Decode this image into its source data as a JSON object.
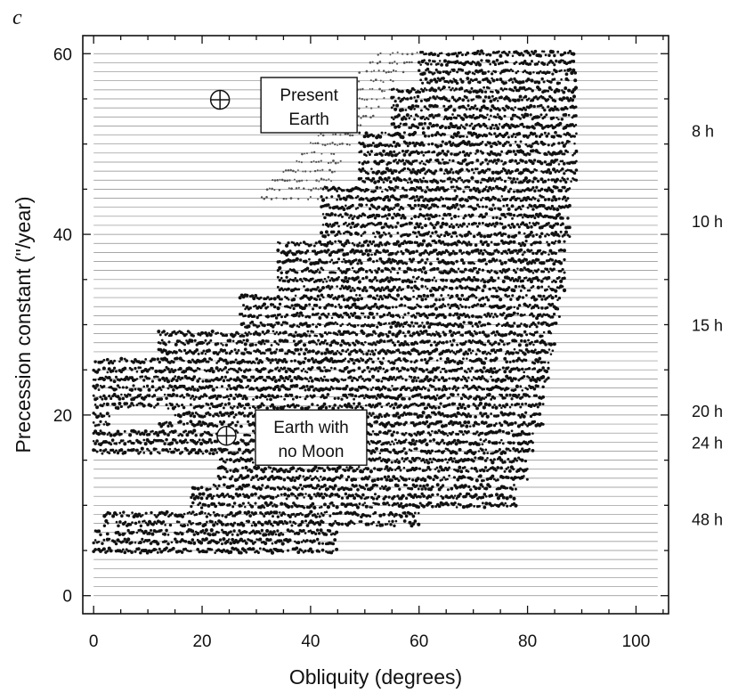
{
  "chart_data": {
    "type": "scatter",
    "panel_label": "c",
    "xlabel": "Obliquity (degrees)",
    "ylabel": "Precession constant (\"/year)",
    "xlim": [
      -2,
      106
    ],
    "ylim": [
      -2,
      62
    ],
    "x_ticks": [
      0,
      20,
      40,
      60,
      80,
      100
    ],
    "y_ticks": [
      0,
      20,
      40,
      60
    ],
    "x_minor_step": 5,
    "y_minor_step": 5,
    "grid": false,
    "legend": "none",
    "colors": {
      "ink": "#111111",
      "scan_line": "#8a8a8a",
      "background": "#ffffff"
    },
    "scan": {
      "y_min": 0,
      "y_max": 60,
      "y_step": 1,
      "x_min": 0,
      "x_max": 104
    },
    "chaotic_zone": {
      "bands": [
        {
          "y_min": 0,
          "y_max": 5,
          "x_lo": null,
          "x_hi": null
        },
        {
          "y_min": 5,
          "y_max": 8,
          "x_lo": 0,
          "x_hi": 45
        },
        {
          "y_min": 8,
          "y_max": 10,
          "x_lo": 2,
          "x_hi": 60
        },
        {
          "y_min": 10,
          "y_max": 13,
          "x_lo": 18,
          "x_hi": 78
        },
        {
          "y_min": 13,
          "y_max": 16,
          "x_lo": 23,
          "x_hi": 80
        },
        {
          "y_min": 16,
          "y_max": 19,
          "x_lo": 0,
          "x_hi": 81
        },
        {
          "y_min": 19,
          "y_max": 24,
          "x_lo": 0,
          "x_hi": 83
        },
        {
          "y_min": 24,
          "y_max": 27,
          "x_lo": 0,
          "x_hi": 84
        },
        {
          "y_min": 27,
          "y_max": 30,
          "x_lo": 12,
          "x_hi": 85
        },
        {
          "y_min": 30,
          "y_max": 34,
          "x_lo": 27,
          "x_hi": 86
        },
        {
          "y_min": 34,
          "y_max": 40,
          "x_lo": 34,
          "x_hi": 87
        },
        {
          "y_min": 40,
          "y_max": 46,
          "x_lo": 42,
          "x_hi": 88
        },
        {
          "y_min": 46,
          "y_max": 52,
          "x_lo": 49,
          "x_hi": 89
        },
        {
          "y_min": 52,
          "y_max": 57,
          "x_lo": 55,
          "x_hi": 89
        },
        {
          "y_min": 57,
          "y_max": 61,
          "x_lo": 60,
          "x_hi": 89
        }
      ],
      "gaps": [
        {
          "y": 20,
          "x_lo": 3,
          "x_hi": 15
        },
        {
          "y": 19,
          "x_lo": 3,
          "x_hi": 12
        }
      ]
    },
    "transition_fringe": [
      {
        "y": 60,
        "x_lo": 52,
        "x_hi": 60
      },
      {
        "y": 59,
        "x_lo": 51,
        "x_hi": 59
      },
      {
        "y": 58,
        "x_lo": 49,
        "x_hi": 58
      },
      {
        "y": 57,
        "x_lo": 48,
        "x_hi": 56
      },
      {
        "y": 56,
        "x_lo": 46,
        "x_hi": 55
      },
      {
        "y": 55,
        "x_lo": 45,
        "x_hi": 54
      },
      {
        "y": 54,
        "x_lo": 44,
        "x_hi": 53
      },
      {
        "y": 53,
        "x_lo": 43,
        "x_hi": 52
      },
      {
        "y": 52,
        "x_lo": 42,
        "x_hi": 50
      },
      {
        "y": 51,
        "x_lo": 41,
        "x_hi": 49
      },
      {
        "y": 50,
        "x_lo": 40,
        "x_hi": 48
      },
      {
        "y": 49,
        "x_lo": 38,
        "x_hi": 47
      },
      {
        "y": 48,
        "x_lo": 37,
        "x_hi": 46
      },
      {
        "y": 47,
        "x_lo": 35,
        "x_hi": 45
      },
      {
        "y": 46,
        "x_lo": 33,
        "x_hi": 44
      },
      {
        "y": 45,
        "x_lo": 32,
        "x_hi": 43
      },
      {
        "y": 44,
        "x_lo": 31,
        "x_hi": 42
      }
    ],
    "annotations": [
      {
        "id": "present-earth",
        "line1": "Present",
        "line2": "Earth",
        "marker_x": 23.3,
        "marker_y": 54.9
      },
      {
        "id": "earth-no-moon",
        "line1": "Earth with",
        "line2": "no Moon",
        "marker_x": 24.5,
        "marker_y": 17.7
      }
    ],
    "day_length_labels": [
      {
        "text": "8 h",
        "y": 51.5
      },
      {
        "text": "10 h",
        "y": 41.5
      },
      {
        "text": "15 h",
        "y": 30.0
      },
      {
        "text": "20 h",
        "y": 20.5
      },
      {
        "text": "24 h",
        "y": 17.0
      },
      {
        "text": "48 h",
        "y": 8.5
      }
    ]
  }
}
